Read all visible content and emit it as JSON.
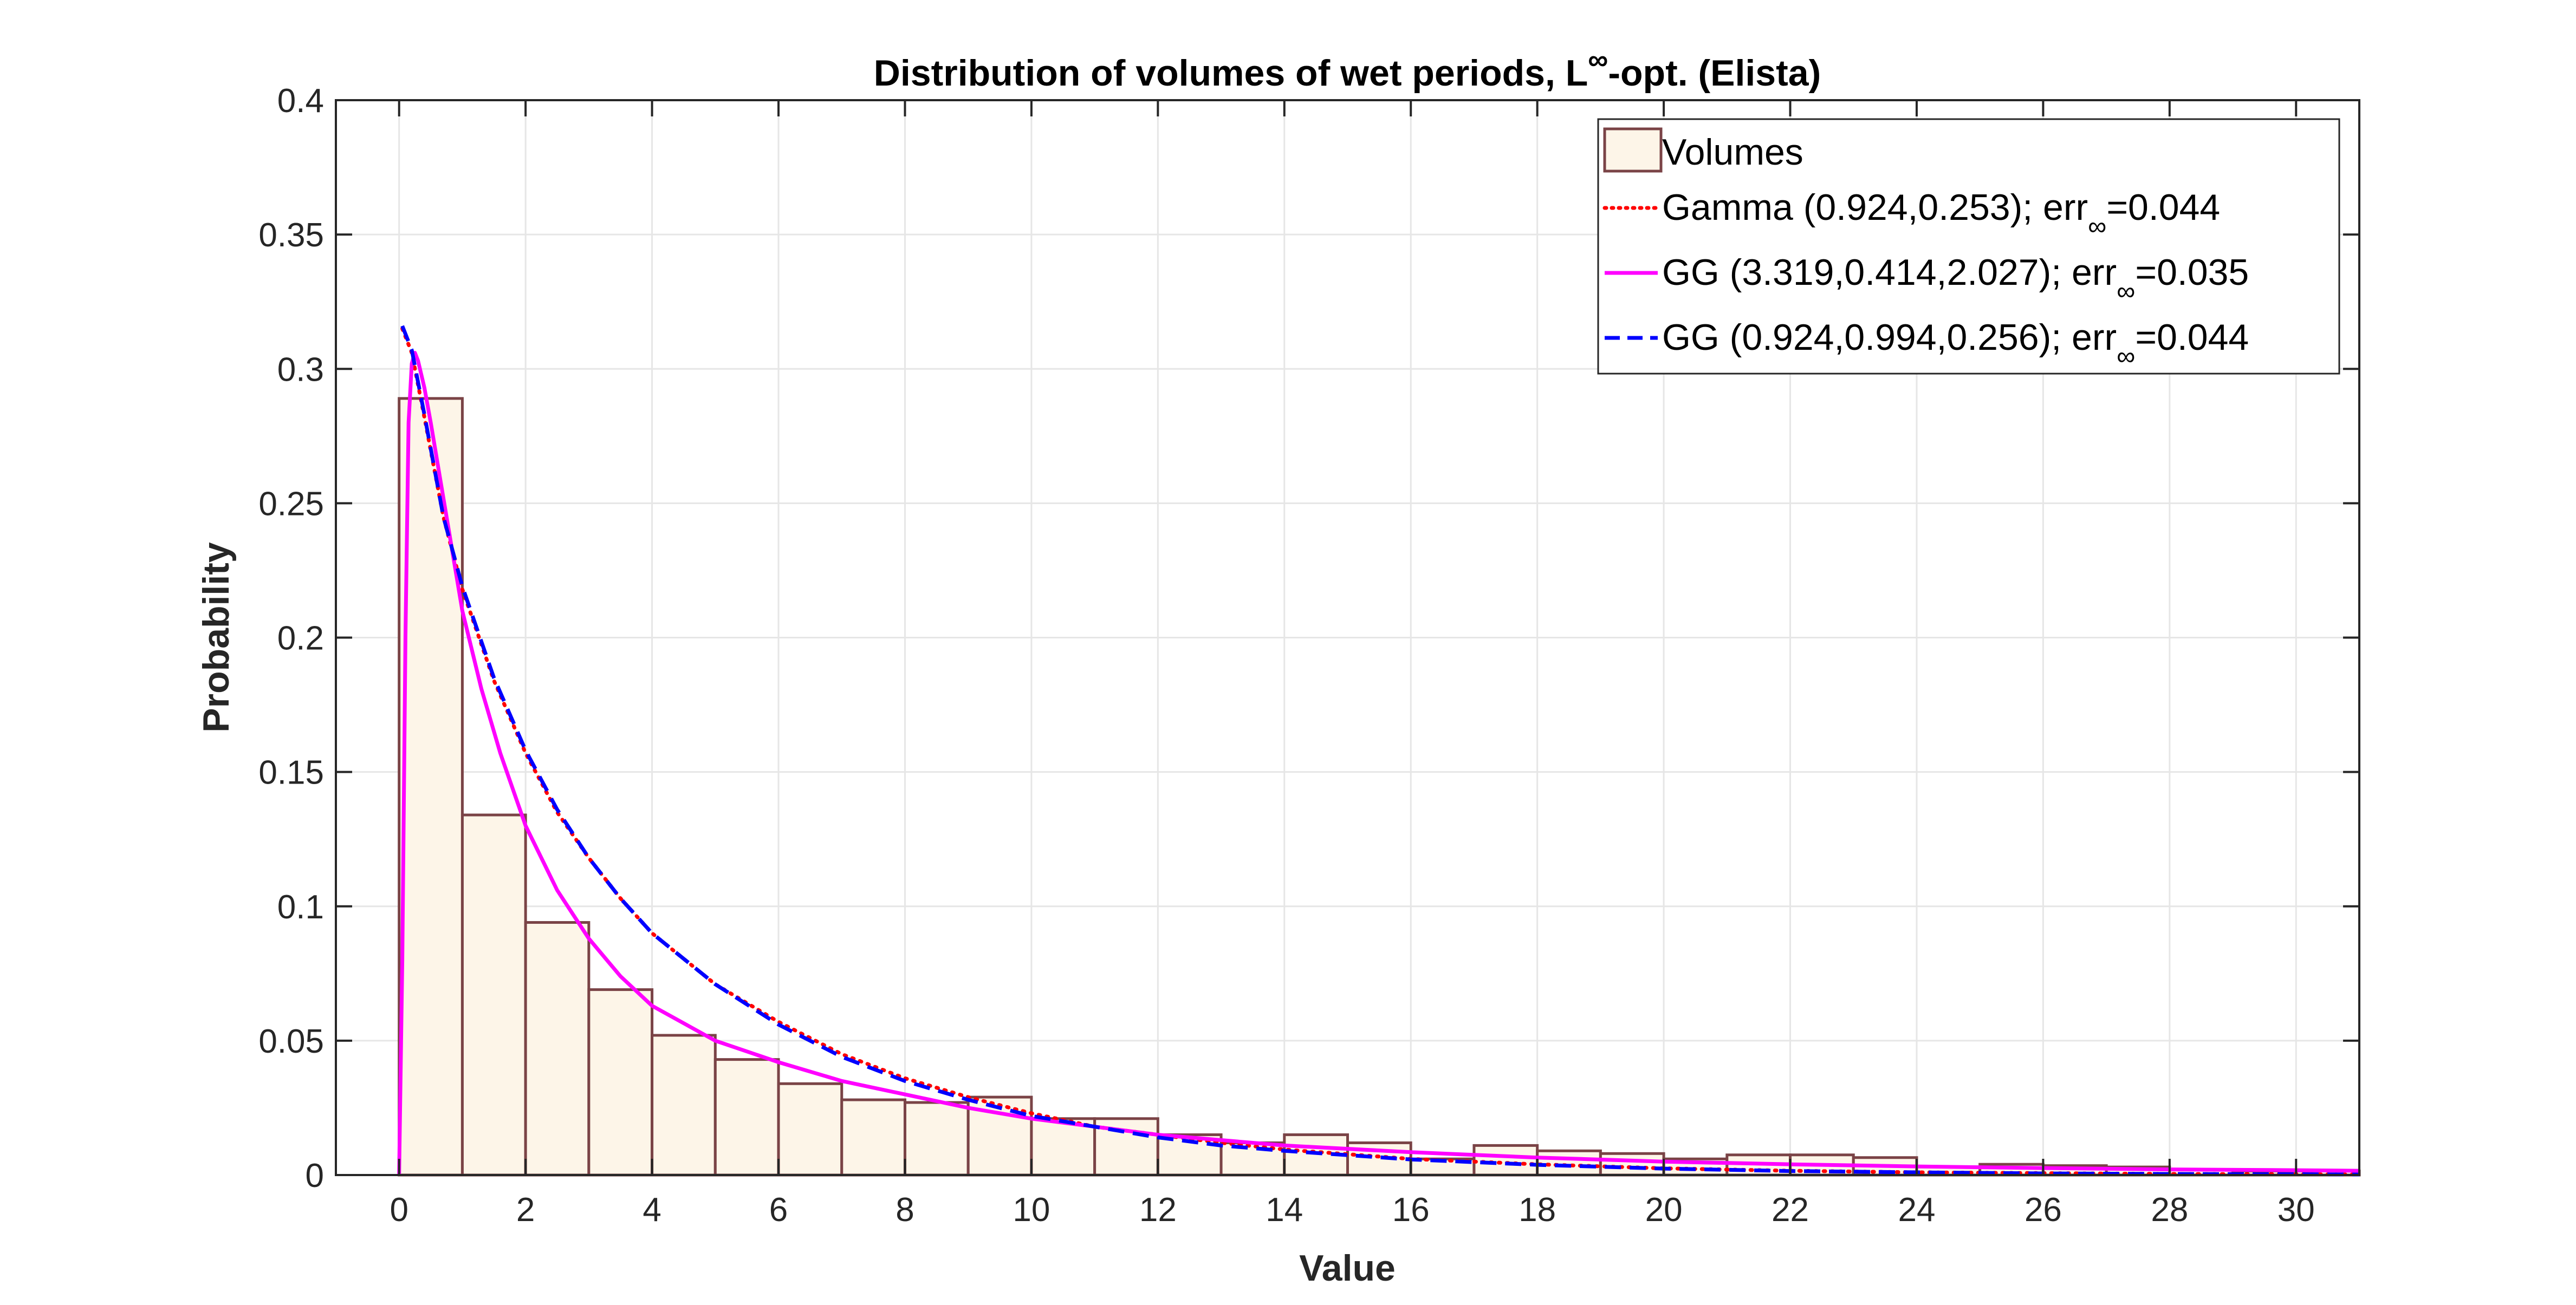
{
  "chart_data": {
    "type": "bar",
    "title": "Distribution of volumes of wet periods, L",
    "title_superscript": "∞",
    "title_suffix": "-opt. (Elista)",
    "xlabel": "Value",
    "ylabel": "Probability",
    "xlim": [
      -1,
      31
    ],
    "ylim": [
      0,
      0.4
    ],
    "xticks": [
      "0",
      "2",
      "4",
      "6",
      "8",
      "10",
      "12",
      "14",
      "16",
      "18",
      "20",
      "22",
      "24",
      "26",
      "28",
      "30"
    ],
    "yticks": [
      "0",
      "0.05",
      "0.1",
      "0.15",
      "0.2",
      "0.25",
      "0.3",
      "0.35",
      "0.4"
    ],
    "grid": true,
    "legend_location": "top-right",
    "colors": {
      "bar_fill": "#fdf5e8",
      "bar_edge": "#7a4346",
      "gamma": "#ff0000",
      "gg_fit": "#ff00ff",
      "gg_gamma": "#0000ff"
    },
    "histogram": {
      "name": "Volumes",
      "bin_edges": [
        0,
        1,
        2,
        3,
        4,
        5,
        6,
        7,
        8,
        9,
        10,
        11,
        12,
        13,
        14,
        15,
        16,
        17,
        18,
        19,
        20,
        21,
        22,
        23,
        24,
        25,
        26,
        27,
        28,
        29,
        30,
        31
      ],
      "values": [
        0.289,
        0.134,
        0.094,
        0.069,
        0.052,
        0.043,
        0.034,
        0.028,
        0.027,
        0.029,
        0.021,
        0.021,
        0.015,
        0.012,
        0.015,
        0.012,
        0.006,
        0.011,
        0.009,
        0.008,
        0.006,
        0.0075,
        0.0075,
        0.0065,
        0.003,
        0.004,
        0.0035,
        0.003,
        0.002,
        0.0015,
        0.0015
      ]
    },
    "series": [
      {
        "legend_prefix": "Gamma (0.924,0.253); err",
        "legend_sub": "∞",
        "legend_suffix": "=0.044",
        "style": "dotted",
        "color": "#ff0000",
        "x": [
          0.05,
          0.2,
          0.4,
          0.7,
          1,
          1.5,
          2,
          2.5,
          3,
          3.5,
          4,
          5,
          6,
          7,
          8,
          9,
          10,
          11,
          12,
          13,
          14,
          16,
          18,
          20,
          22,
          24,
          26,
          28,
          30,
          31
        ],
        "y": [
          0.315,
          0.306,
          0.282,
          0.245,
          0.218,
          0.184,
          0.157,
          0.135,
          0.118,
          0.103,
          0.09,
          0.071,
          0.057,
          0.045,
          0.036,
          0.029,
          0.023,
          0.018,
          0.015,
          0.012,
          0.0095,
          0.006,
          0.004,
          0.0025,
          0.0016,
          0.001,
          0.0007,
          0.0004,
          0.0003,
          0.0002
        ]
      },
      {
        "legend_prefix": "GG (3.319,0.414,2.027); err",
        "legend_sub": "∞",
        "legend_suffix": "=0.035",
        "style": "solid",
        "color": "#ff00ff",
        "x": [
          0,
          0.05,
          0.1,
          0.15,
          0.2,
          0.25,
          0.3,
          0.4,
          0.5,
          0.7,
          1,
          1.3,
          1.6,
          2,
          2.5,
          3,
          3.5,
          4,
          5,
          6,
          7,
          8,
          9,
          10,
          11,
          12,
          14,
          16,
          18,
          20,
          22,
          24,
          26,
          28,
          30,
          31
        ],
        "y": [
          0,
          0.08,
          0.2,
          0.28,
          0.302,
          0.306,
          0.303,
          0.293,
          0.28,
          0.252,
          0.21,
          0.181,
          0.157,
          0.13,
          0.106,
          0.088,
          0.074,
          0.063,
          0.05,
          0.042,
          0.035,
          0.03,
          0.025,
          0.021,
          0.018,
          0.015,
          0.011,
          0.0085,
          0.0065,
          0.005,
          0.004,
          0.0032,
          0.0026,
          0.0021,
          0.0018,
          0.0016
        ]
      },
      {
        "legend_prefix": "GG (0.924,0.994,0.256); err",
        "legend_sub": "∞",
        "legend_suffix": "=0.044",
        "style": "dashed",
        "color": "#0000ff",
        "x": [
          0.05,
          0.2,
          0.4,
          0.7,
          1,
          1.5,
          2,
          2.5,
          3,
          3.5,
          4,
          5,
          6,
          7,
          8,
          9,
          10,
          11,
          12,
          13,
          14,
          16,
          18,
          20,
          22,
          24,
          26,
          28,
          30,
          31
        ],
        "y": [
          0.316,
          0.307,
          0.283,
          0.245,
          0.219,
          0.185,
          0.158,
          0.136,
          0.118,
          0.103,
          0.09,
          0.071,
          0.056,
          0.044,
          0.035,
          0.028,
          0.022,
          0.018,
          0.014,
          0.011,
          0.009,
          0.0058,
          0.0038,
          0.0024,
          0.0015,
          0.001,
          0.0006,
          0.0004,
          0.0003,
          0.0002
        ]
      }
    ]
  }
}
